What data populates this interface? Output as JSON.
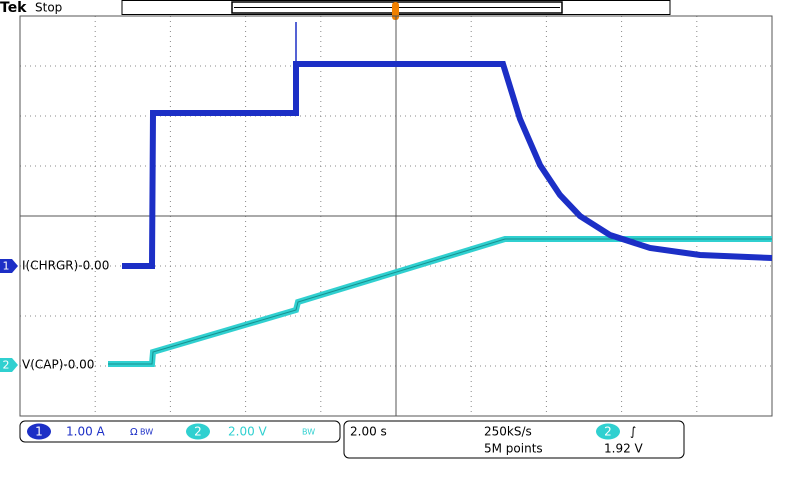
{
  "header": {
    "brand": "Tek",
    "status": "Stop"
  },
  "channels": [
    {
      "number": "1",
      "label": "I(CHRGR)-0.00",
      "scale": "1.00 A",
      "coupling": "Ω",
      "bandwidth": "BW"
    },
    {
      "number": "2",
      "label": "V(CAP)-0.00",
      "scale": "2.00 V",
      "bandwidth": "BW"
    }
  ],
  "acquisition": {
    "timebase": "2.00 s",
    "sample_rate": "250kS/s",
    "record_length": "5M points"
  },
  "trigger": {
    "source": "2",
    "slope": "∫",
    "level": "1.92 V"
  }
}
